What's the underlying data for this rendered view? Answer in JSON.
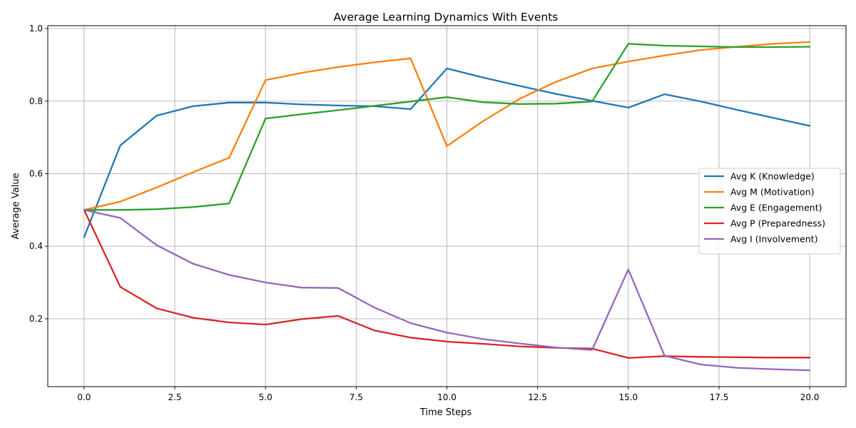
{
  "chart_data": {
    "type": "line",
    "title": "Average Learning Dynamics With Events",
    "xlabel": "Time Steps",
    "ylabel": "Average Value",
    "xlim": [
      -1,
      21
    ],
    "ylim": [
      0.013,
      1.008
    ],
    "xticks": [
      0.0,
      2.5,
      5.0,
      7.5,
      10.0,
      12.5,
      15.0,
      17.5,
      20.0
    ],
    "xtick_labels": [
      "0.0",
      "2.5",
      "5.0",
      "7.5",
      "10.0",
      "12.5",
      "15.0",
      "17.5",
      "20.0"
    ],
    "yticks": [
      0.2,
      0.4,
      0.6,
      0.8,
      1.0
    ],
    "ytick_labels": [
      "0.2",
      "0.4",
      "0.6",
      "0.8",
      "1.0"
    ],
    "grid": true,
    "legend_position": "center-right",
    "x": [
      0,
      1,
      2,
      3,
      4,
      5,
      6,
      7,
      8,
      9,
      10,
      11,
      12,
      13,
      14,
      15,
      16,
      17,
      18,
      19,
      20
    ],
    "series": [
      {
        "name": "Avg K (Knowledge)",
        "color": "#1f77b4",
        "values": [
          0.425,
          0.678,
          0.76,
          0.786,
          0.796,
          0.796,
          0.791,
          0.788,
          0.786,
          0.778,
          0.89,
          0.865,
          0.842,
          0.82,
          0.801,
          0.782,
          0.819,
          0.799,
          0.776,
          0.754,
          0.732
        ]
      },
      {
        "name": "Avg M (Motivation)",
        "color": "#ff7f0e",
        "values": [
          0.5,
          0.523,
          0.562,
          0.604,
          0.644,
          0.858,
          0.878,
          0.894,
          0.907,
          0.918,
          0.676,
          0.745,
          0.806,
          0.853,
          0.89,
          0.909,
          0.926,
          0.941,
          0.95,
          0.958,
          0.963
        ]
      },
      {
        "name": "Avg E (Engagement)",
        "color": "#2ca02c",
        "values": [
          0.5,
          0.5,
          0.502,
          0.508,
          0.518,
          0.752,
          0.764,
          0.775,
          0.787,
          0.799,
          0.811,
          0.797,
          0.792,
          0.793,
          0.799,
          0.958,
          0.953,
          0.951,
          0.949,
          0.949,
          0.95
        ]
      },
      {
        "name": "Avg P (Preparedness)",
        "color": "#d62728",
        "values": [
          0.5,
          0.288,
          0.229,
          0.203,
          0.19,
          0.184,
          0.199,
          0.208,
          0.168,
          0.148,
          0.137,
          0.131,
          0.124,
          0.12,
          0.118,
          0.092,
          0.097,
          0.095,
          0.094,
          0.093,
          0.093
        ]
      },
      {
        "name": "Avg I (Involvement)",
        "color": "#9467bd",
        "values": [
          0.5,
          0.478,
          0.403,
          0.352,
          0.321,
          0.3,
          0.286,
          0.285,
          0.231,
          0.188,
          0.162,
          0.144,
          0.132,
          0.121,
          0.114,
          0.336,
          0.098,
          0.074,
          0.065,
          0.061,
          0.058
        ]
      }
    ]
  }
}
